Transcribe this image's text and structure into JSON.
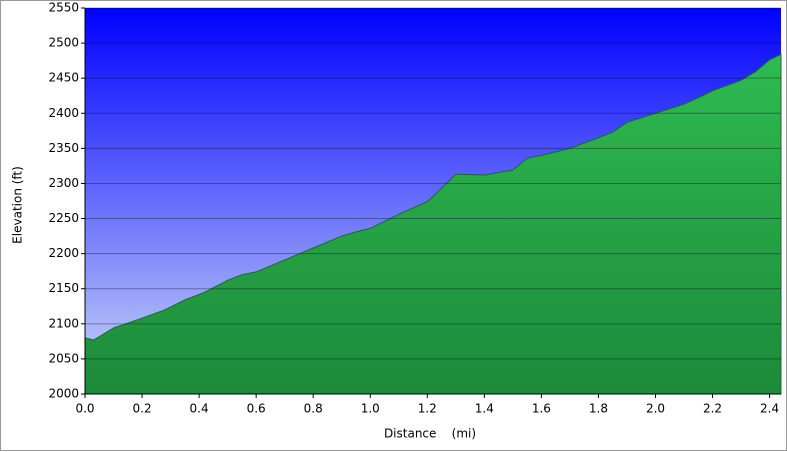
{
  "chart_data": {
    "type": "area",
    "x_label": "Distance    (mi)",
    "y_label": "Elevation (ft)",
    "x": [
      0,
      0.03,
      0.1,
      0.2,
      0.28,
      0.35,
      0.42,
      0.5,
      0.55,
      0.6,
      0.7,
      0.8,
      0.9,
      0.95,
      1.0,
      1.1,
      1.2,
      1.25,
      1.3,
      1.4,
      1.5,
      1.55,
      1.6,
      1.7,
      1.8,
      1.85,
      1.9,
      2.0,
      2.1,
      2.17,
      2.2,
      2.3,
      2.35,
      2.4,
      2.44
    ],
    "values": [
      2080,
      2077,
      2094,
      2108,
      2120,
      2134,
      2145,
      2162,
      2170,
      2174,
      2191,
      2208,
      2225,
      2231,
      2236,
      2256,
      2274,
      2293,
      2313,
      2312,
      2319,
      2336,
      2340,
      2350,
      2365,
      2373,
      2387,
      2400,
      2413,
      2426,
      2432,
      2447,
      2459,
      2476,
      2484
    ],
    "color": "#27a548",
    "xlim": [
      0,
      2.44
    ],
    "ylim": [
      2000,
      2550
    ],
    "xticks": [
      {
        "value": 0,
        "label": "0.0"
      },
      0.2,
      0.4,
      0.6,
      0.8,
      {
        "value": 1,
        "label": "1.0"
      },
      1.2,
      1.4,
      1.6,
      1.8,
      {
        "value": 2,
        "label": "2.0"
      },
      2.2,
      2.4
    ],
    "yticks": [
      2000,
      2050,
      2100,
      2150,
      2200,
      2250,
      2300,
      2350,
      2400,
      2450,
      2500,
      2550
    ],
    "grid": true
  }
}
